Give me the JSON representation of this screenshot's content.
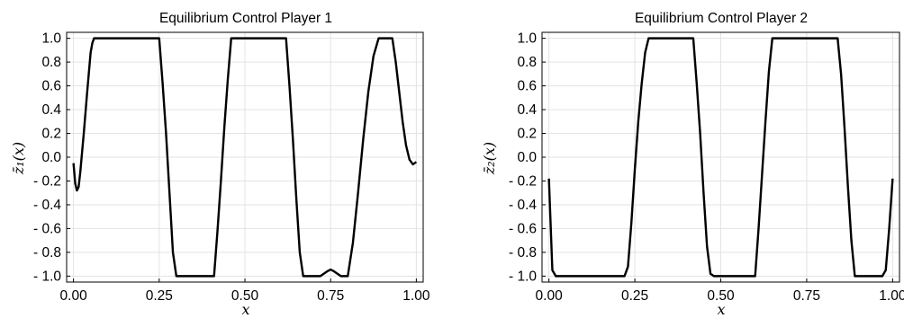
{
  "chart_data": [
    {
      "type": "line",
      "title": "Equilibrium Control Player 1",
      "xlabel": "x",
      "ylabel": "z̄₁(x)",
      "xlim": [
        -0.02,
        1.02
      ],
      "ylim": [
        -1.05,
        1.05
      ],
      "xticks": [
        0,
        0.25,
        0.5,
        0.75,
        1.0
      ],
      "xtick_labels": [
        "0.00",
        "0.25",
        "0.50",
        "0.75",
        "1.00"
      ],
      "yticks": [
        1.0,
        0.8,
        0.6,
        0.4,
        0.2,
        0.0,
        -0.2,
        -0.4,
        -0.6,
        -0.8,
        -1.0
      ],
      "ytick_labels": [
        "1.0",
        "0.8",
        "0.6",
        "0.4",
        "0.2",
        "0.0",
        "- 0.2",
        "- 0.4",
        "- 0.6",
        "- 0.8",
        "- 1.0"
      ],
      "grid": true,
      "series": [
        {
          "x": [
            0.0,
            0.005,
            0.01,
            0.015,
            0.02,
            0.03,
            0.04,
            0.05,
            0.055,
            0.06,
            0.25,
            0.26,
            0.27,
            0.28,
            0.29,
            0.3,
            0.41,
            0.42,
            0.43,
            0.44,
            0.45,
            0.46,
            0.62,
            0.63,
            0.64,
            0.65,
            0.66,
            0.67,
            0.7,
            0.72,
            0.74,
            0.75,
            0.76,
            0.78,
            0.8,
            0.815,
            0.83,
            0.845,
            0.86,
            0.875,
            0.89,
            0.9,
            0.93,
            0.94,
            0.95,
            0.96,
            0.97,
            0.98,
            0.99,
            1.0
          ],
          "y": [
            -0.05,
            -0.22,
            -0.28,
            -0.25,
            -0.12,
            0.2,
            0.55,
            0.88,
            0.96,
            1.0,
            1.0,
            0.62,
            0.2,
            -0.3,
            -0.8,
            -1.0,
            -1.0,
            -0.62,
            -0.2,
            0.25,
            0.65,
            1.0,
            1.0,
            0.6,
            0.15,
            -0.35,
            -0.8,
            -1.0,
            -1.0,
            -1.0,
            -0.96,
            -0.945,
            -0.96,
            -1.0,
            -1.0,
            -0.72,
            -0.3,
            0.15,
            0.55,
            0.85,
            1.0,
            1.0,
            1.0,
            0.8,
            0.55,
            0.3,
            0.1,
            -0.02,
            -0.06,
            -0.04
          ]
        }
      ]
    },
    {
      "type": "line",
      "title": "Equilibrium Control Player 2",
      "xlabel": "x",
      "ylabel": "z̄₂(x)",
      "xlim": [
        -0.02,
        1.02
      ],
      "ylim": [
        -1.05,
        1.05
      ],
      "xticks": [
        0,
        0.25,
        0.5,
        0.75,
        1.0
      ],
      "xtick_labels": [
        "0.00",
        "0.25",
        "0.50",
        "0.75",
        "1.00"
      ],
      "yticks": [
        1.0,
        0.8,
        0.6,
        0.4,
        0.2,
        0.0,
        -0.2,
        -0.4,
        -0.6,
        -0.8,
        -1.0
      ],
      "ytick_labels": [
        "1.0",
        "0.8",
        "0.6",
        "0.4",
        "0.2",
        "0.0",
        "- 0.2",
        "- 0.4",
        "- 0.6",
        "- 0.8",
        "- 1.0"
      ],
      "grid": true,
      "series": [
        {
          "x": [
            0.0,
            0.01,
            0.02,
            0.22,
            0.23,
            0.24,
            0.25,
            0.26,
            0.27,
            0.28,
            0.29,
            0.42,
            0.43,
            0.44,
            0.45,
            0.46,
            0.47,
            0.48,
            0.6,
            0.61,
            0.62,
            0.63,
            0.64,
            0.65,
            0.84,
            0.85,
            0.86,
            0.87,
            0.88,
            0.89,
            0.97,
            0.98,
            0.99,
            1.0
          ],
          "y": [
            -0.18,
            -0.95,
            -1.0,
            -1.0,
            -0.92,
            -0.55,
            -0.1,
            0.3,
            0.62,
            0.88,
            1.0,
            1.0,
            0.62,
            0.2,
            -0.3,
            -0.75,
            -0.98,
            -1.0,
            -1.0,
            -0.6,
            -0.15,
            0.3,
            0.72,
            1.0,
            1.0,
            0.7,
            0.25,
            -0.25,
            -0.7,
            -1.0,
            -1.0,
            -0.95,
            -0.6,
            -0.18
          ]
        }
      ]
    }
  ]
}
